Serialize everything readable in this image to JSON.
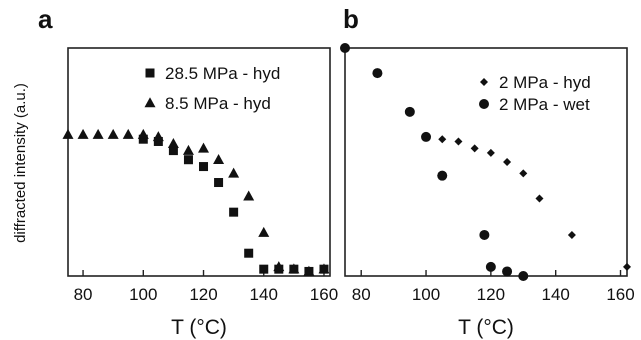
{
  "y_axis_label": "diffracted intensity (a.u.)",
  "chart_data": [
    {
      "type": "scatter",
      "panel_label": "a",
      "xlabel": "T (°C)",
      "ylabel": "diffracted intensity (a.u.)",
      "xlim": [
        75,
        162
      ],
      "ylim": [
        0,
        1.0
      ],
      "xticks": [
        80,
        100,
        120,
        140,
        160
      ],
      "y_ticks_labeled": false,
      "legend_position": "top-right",
      "series": [
        {
          "name": "28.5 MPa - hyd",
          "marker": "square",
          "x": [
            100,
            105,
            110,
            115,
            120,
            125,
            130,
            135,
            140,
            145,
            150,
            155,
            160
          ],
          "y": [
            0.6,
            0.59,
            0.55,
            0.51,
            0.48,
            0.41,
            0.28,
            0.1,
            0.03,
            0.03,
            0.03,
            0.02,
            0.03
          ]
        },
        {
          "name": "8.5 MPa - hyd",
          "marker": "triangle",
          "x": [
            75,
            80,
            85,
            90,
            95,
            100,
            105,
            110,
            115,
            120,
            125,
            130,
            135,
            140,
            145,
            150,
            155,
            160
          ],
          "y": [
            0.62,
            0.62,
            0.62,
            0.62,
            0.62,
            0.62,
            0.61,
            0.58,
            0.55,
            0.56,
            0.51,
            0.45,
            0.35,
            0.19,
            0.04,
            0.03,
            0.02,
            0.03
          ]
        }
      ]
    },
    {
      "type": "scatter",
      "panel_label": "b",
      "xlabel": "T (°C)",
      "xlim": [
        75,
        162
      ],
      "ylim": [
        0,
        1.0
      ],
      "xticks": [
        80,
        100,
        120,
        140,
        160
      ],
      "y_ticks_labeled": false,
      "legend_position": "top-right",
      "series": [
        {
          "name": "2 MPa - hyd",
          "marker": "diamond",
          "x": [
            100,
            105,
            110,
            115,
            120,
            125,
            130,
            135,
            145,
            162
          ],
          "y": [
            0.61,
            0.6,
            0.59,
            0.56,
            0.54,
            0.5,
            0.45,
            0.34,
            0.18,
            0.04
          ]
        },
        {
          "name": "2 MPa - wet",
          "marker": "circle",
          "x": [
            75,
            85,
            95,
            100,
            105,
            118,
            120,
            125,
            130
          ],
          "y": [
            1.0,
            0.89,
            0.72,
            0.61,
            0.44,
            0.18,
            0.04,
            0.02,
            0.0
          ]
        }
      ]
    }
  ]
}
